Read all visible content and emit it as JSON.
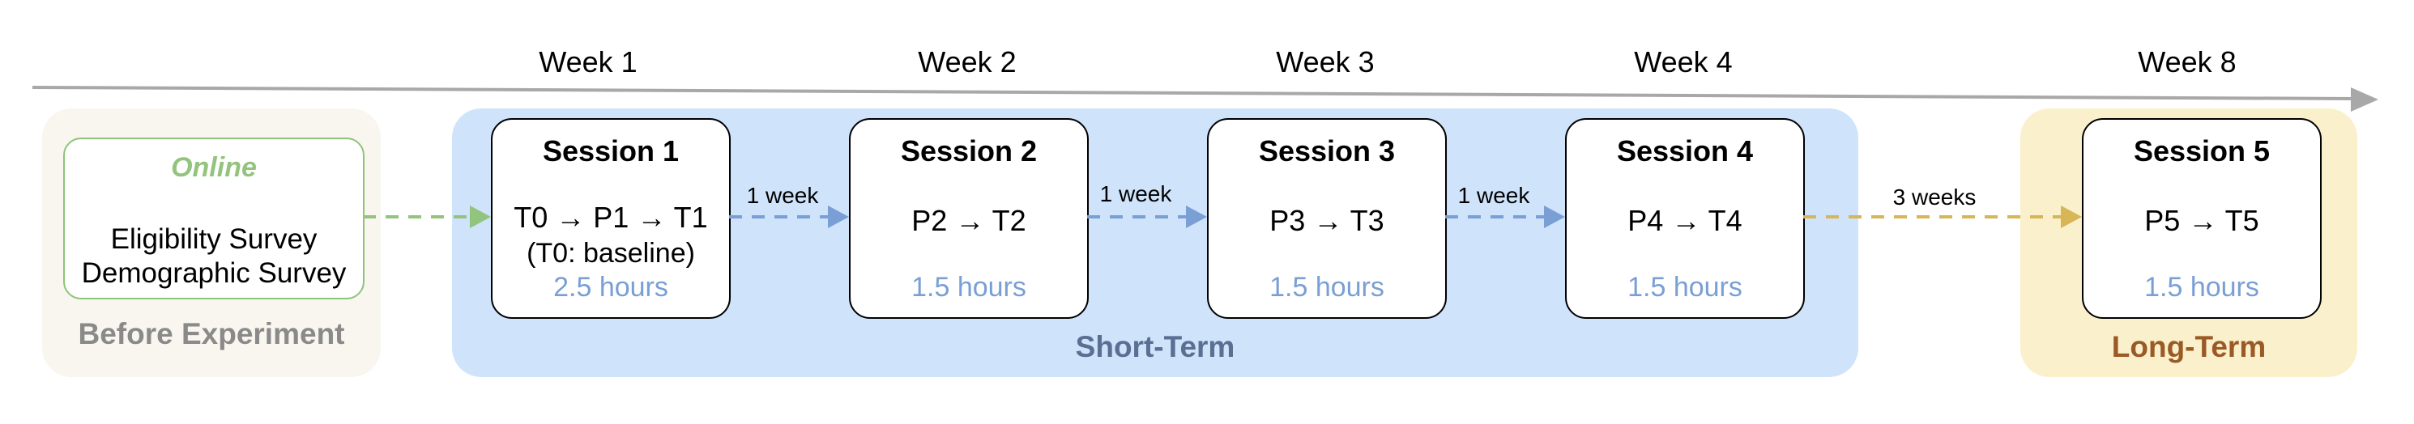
{
  "weeks": [
    "Week 1",
    "Week 2",
    "Week 3",
    "Week 4",
    "Week 8"
  ],
  "phases": {
    "before": "Before Experiment",
    "short_term": "Short-Term",
    "long_term": "Long-Term"
  },
  "online": {
    "title": "Online",
    "lines": [
      "Eligibility Survey",
      "Demographic Survey"
    ]
  },
  "sessions": [
    {
      "title": "Session 1",
      "sequence": "T0 → P1 → T1",
      "note": "(T0: baseline)",
      "duration": "2.5 hours"
    },
    {
      "title": "Session 2",
      "sequence": "P2 → T2",
      "duration": "1.5 hours"
    },
    {
      "title": "Session 3",
      "sequence": "P3 → T3",
      "duration": "1.5 hours"
    },
    {
      "title": "Session 4",
      "sequence": "P4 → T4",
      "duration": "1.5 hours"
    },
    {
      "title": "Session 5",
      "sequence": "P5 → T5",
      "duration": "1.5 hours"
    }
  ],
  "gaps": [
    "1 week",
    "1 week",
    "1 week",
    "3 weeks"
  ],
  "colors": {
    "timeline": "#a8a8a8",
    "online_arrow": "#93c47d",
    "session_arrow": "#7a9fd4",
    "long_arrow": "#d6b656"
  }
}
